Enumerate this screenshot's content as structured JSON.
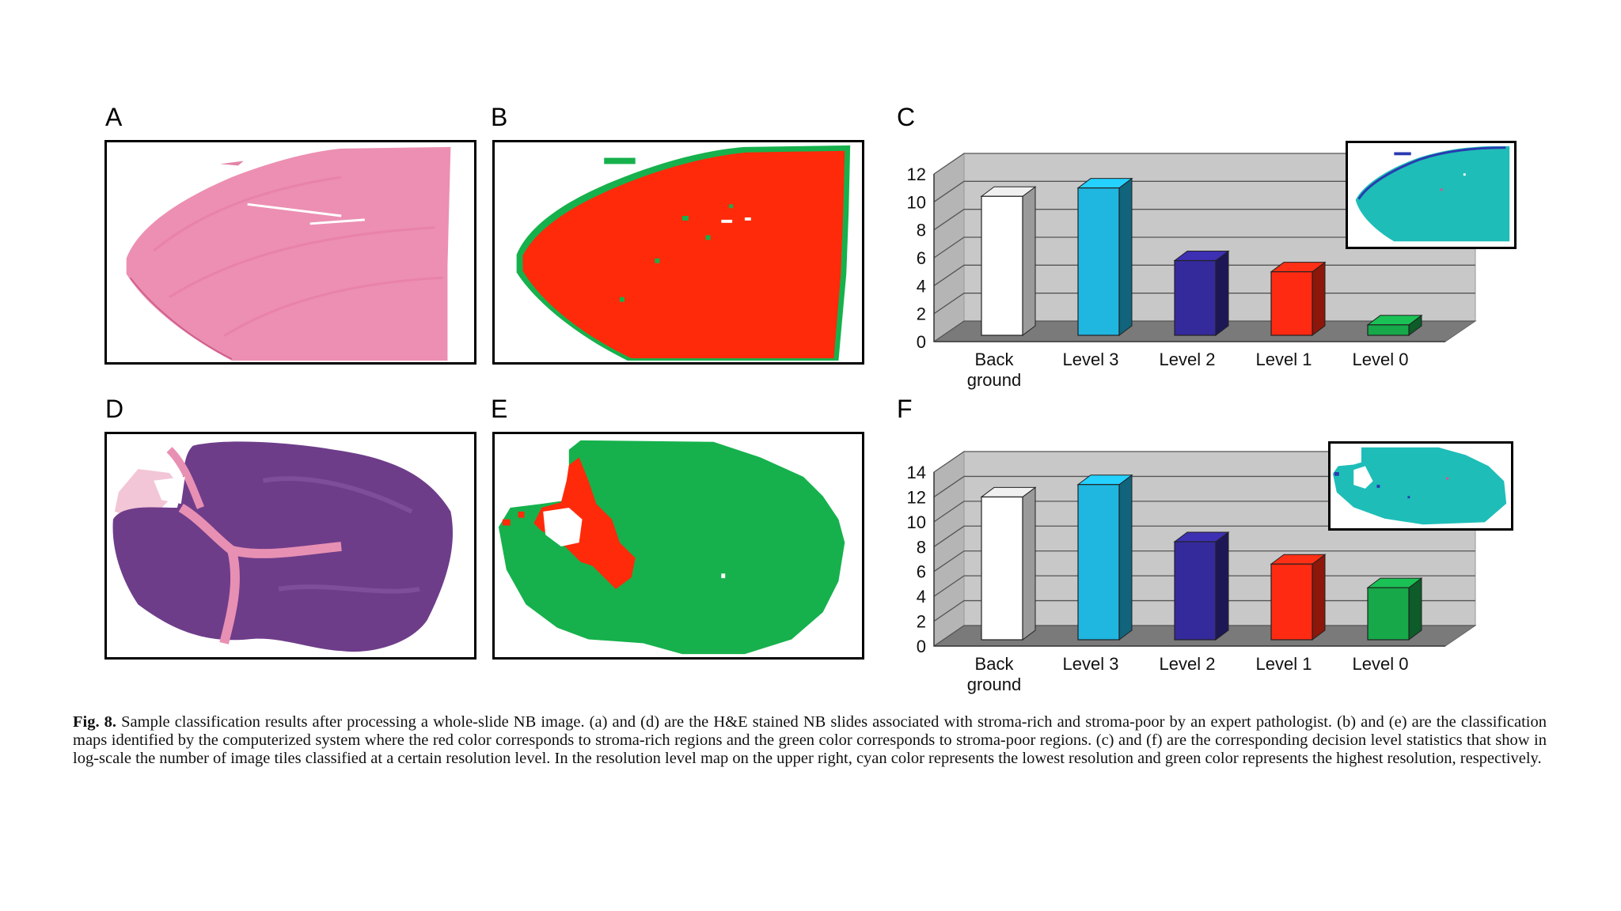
{
  "panels": {
    "a": {
      "label": "A"
    },
    "b": {
      "label": "B"
    },
    "c": {
      "label": "C"
    },
    "d": {
      "label": "D"
    },
    "e": {
      "label": "E"
    },
    "f": {
      "label": "F"
    }
  },
  "colors": {
    "background_bar": "#ffffff",
    "level3": "#1fb6e0",
    "level2": "#352a9c",
    "level1": "#ff2a12",
    "level0": "#17a84a",
    "stroma_rich": "#ff2a0a",
    "stroma_poor": "#16b14c",
    "cyan_map": "#1ebdb8"
  },
  "chart_data": [
    {
      "type": "bar",
      "panel": "C",
      "categories": [
        "Back ground",
        "Level 3",
        "Level 2",
        "Level 1",
        "Level 0"
      ],
      "category_lines": [
        [
          "Back",
          "ground"
        ],
        [
          "Level 3"
        ],
        [
          "Level 2"
        ],
        [
          "Level 1"
        ],
        [
          "Level 0"
        ]
      ],
      "values": [
        10.4,
        11.0,
        5.8,
        5.0,
        1.2
      ],
      "ylim": [
        0,
        12
      ],
      "yticks": [
        0,
        2,
        4,
        6,
        8,
        10,
        12
      ],
      "grid": true,
      "style": "3d",
      "inset": "resolution level map (upper right)"
    },
    {
      "type": "bar",
      "panel": "F",
      "categories": [
        "Back ground",
        "Level 3",
        "Level 2",
        "Level 1",
        "Level 0"
      ],
      "category_lines": [
        [
          "Back",
          "ground"
        ],
        [
          "Level 3"
        ],
        [
          "Level 2"
        ],
        [
          "Level 1"
        ],
        [
          "Level 0"
        ]
      ],
      "values": [
        12.0,
        13.0,
        8.4,
        6.6,
        4.7
      ],
      "ylim": [
        0,
        14
      ],
      "yticks": [
        0,
        2,
        4,
        6,
        8,
        10,
        12,
        14
      ],
      "grid": true,
      "style": "3d",
      "inset": "resolution level map (upper right)"
    }
  ],
  "caption": {
    "fig_label": "Fig. 8.",
    "text": "Sample classification results after processing a whole-slide NB image. (a) and (d) are the H&E stained NB slides associated with stroma-rich and stroma-poor by an expert pathologist. (b) and (e) are the classification maps identified by the computerized system where the red color corresponds to stroma-rich regions and the green color corresponds to stroma-poor regions. (c) and (f) are the corresponding decision level statistics that show in log-scale the number of image tiles classified at a certain resolution level. In the resolution level map on the upper right, cyan color represents the lowest resolution and green color represents the highest resolution, respectively."
  }
}
